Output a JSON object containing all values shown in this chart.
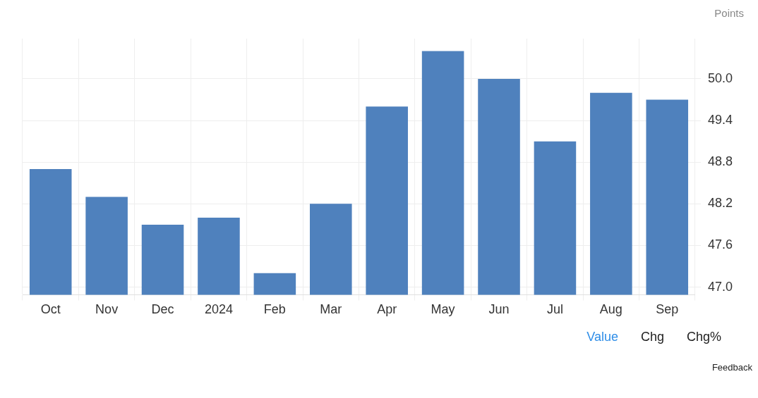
{
  "chart_data": {
    "type": "bar",
    "ylabel": "Points",
    "categories": [
      "Oct",
      "Nov",
      "Dec",
      "2024",
      "Feb",
      "Mar",
      "Apr",
      "May",
      "Jun",
      "Jul",
      "Aug",
      "Sep"
    ],
    "values": [
      48.7,
      48.3,
      47.9,
      48.0,
      47.2,
      48.2,
      49.6,
      50.4,
      50.0,
      49.1,
      49.8,
      49.7
    ],
    "color": "#4f81bd",
    "ylim": [
      46.89,
      50.58
    ],
    "yticks": [
      {
        "value": 47,
        "label": "47.0"
      },
      47.6,
      48.2,
      48.8,
      49.4,
      {
        "value": 50,
        "label": "50.0"
      }
    ],
    "grid": true,
    "legend": false,
    "annotations": [
      "Value",
      "Chg",
      "Chg%",
      "Feedback"
    ]
  }
}
